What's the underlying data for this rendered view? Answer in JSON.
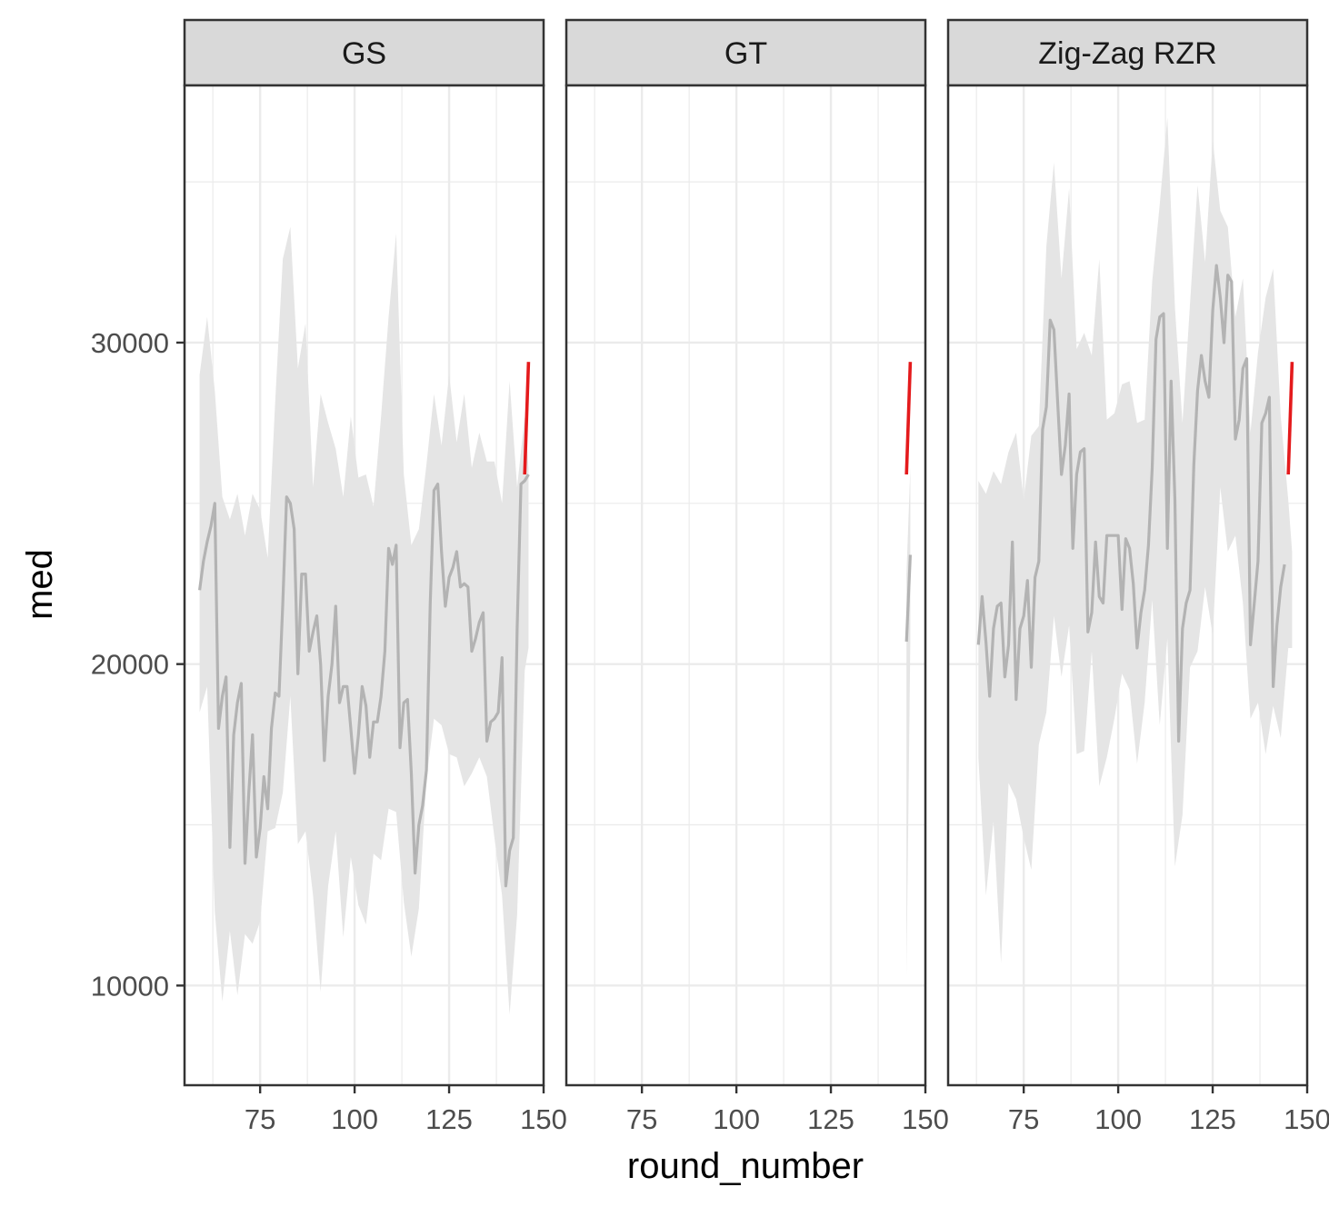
{
  "chart_data": {
    "type": "line",
    "facet_by": "panel",
    "panels": [
      "GS",
      "GT",
      "Zig-Zag RZR"
    ],
    "xlabel": "round_number",
    "ylabel": "med",
    "xlim": [
      55,
      150
    ],
    "ylim": [
      6900,
      38000
    ],
    "xticks": [
      75,
      100,
      125,
      150
    ],
    "xtick_labels": [
      "75",
      "100",
      "125",
      "150"
    ],
    "yticks": [
      10000,
      20000,
      30000
    ],
    "ytick_labels": [
      "10000",
      "20000",
      "30000"
    ],
    "grid": true,
    "theme": "bw",
    "colors": {
      "history_line": "#b3b3b3",
      "band_fill": "#e5e5e5",
      "recent_line": "#e41a1c",
      "strip_fill": "#d9d9d9",
      "grid": "#ebebeb",
      "panel_border": "#333333"
    },
    "series": [
      {
        "panel": "GS",
        "role": "median",
        "x": [
          59,
          60,
          61,
          62,
          63,
          64,
          65,
          66,
          67,
          68,
          69,
          70,
          71,
          72,
          73,
          74,
          75,
          76,
          77,
          78,
          79,
          80,
          81,
          82,
          83,
          84,
          85,
          86,
          87,
          88,
          89,
          90,
          91,
          92,
          93,
          94,
          95,
          96,
          97,
          98,
          99,
          100,
          101,
          102,
          103,
          104,
          105,
          106,
          107,
          108,
          109,
          110,
          111,
          112,
          113,
          114,
          115,
          116,
          117,
          118,
          119,
          120,
          121,
          122,
          123,
          124,
          125,
          126,
          127,
          128,
          129,
          130,
          131,
          132,
          133,
          134,
          135,
          136,
          137,
          138,
          139,
          140,
          141,
          142,
          143,
          144,
          145,
          146
        ],
        "y": [
          22300,
          23200,
          23800,
          24300,
          25000,
          18000,
          19000,
          19600,
          14300,
          17800,
          18800,
          19400,
          13800,
          16000,
          17800,
          14000,
          14900,
          16500,
          15500,
          18000,
          19100,
          19000,
          21900,
          25200,
          25000,
          24200,
          19700,
          22800,
          22800,
          20400,
          21000,
          21500,
          20000,
          17000,
          19000,
          20000,
          21800,
          18800,
          19300,
          19300,
          18000,
          16600,
          17800,
          19300,
          18700,
          17100,
          18200,
          18200,
          19000,
          20400,
          23600,
          23100,
          23700,
          17400,
          18800,
          18900,
          16600,
          13500,
          15000,
          15600,
          16700,
          21900,
          25400,
          25600,
          23500,
          21800,
          22700,
          23000,
          23500,
          22400,
          22500,
          22400,
          20400,
          20800,
          21300,
          21600,
          17600,
          18200,
          18300,
          18500,
          20200,
          13100,
          14200,
          14600,
          21100,
          25600,
          25700,
          25900
        ]
      },
      {
        "panel": "GS",
        "role": "band_upper",
        "x": [
          59,
          61,
          63,
          65,
          67,
          69,
          71,
          73,
          75,
          77,
          79,
          81,
          83,
          85,
          87,
          89,
          91,
          93,
          95,
          97,
          99,
          101,
          103,
          105,
          107,
          109,
          111,
          113,
          115,
          117,
          119,
          121,
          123,
          125,
          127,
          129,
          131,
          133,
          135,
          137,
          139,
          141,
          143,
          145,
          146
        ],
        "y": [
          29000,
          30800,
          28500,
          25200,
          24500,
          25300,
          24000,
          25300,
          24800,
          23300,
          28200,
          32600,
          33600,
          29200,
          30600,
          25500,
          28400,
          27500,
          26700,
          25200,
          27700,
          25800,
          25900,
          24900,
          27700,
          30800,
          33400,
          25900,
          23700,
          24200,
          26200,
          28400,
          26800,
          29000,
          26900,
          28400,
          26100,
          27200,
          26300,
          26300,
          25000,
          28800,
          25500,
          27700,
          26100
        ]
      },
      {
        "panel": "GS",
        "role": "band_lower",
        "x": [
          59,
          61,
          63,
          65,
          67,
          69,
          71,
          73,
          75,
          77,
          79,
          81,
          83,
          85,
          87,
          89,
          91,
          93,
          95,
          97,
          99,
          101,
          103,
          105,
          107,
          109,
          111,
          113,
          115,
          117,
          119,
          121,
          123,
          125,
          127,
          129,
          131,
          133,
          135,
          137,
          139,
          141,
          143,
          145,
          146
        ],
        "y": [
          18500,
          19300,
          12300,
          9500,
          11700,
          9700,
          11600,
          11300,
          12000,
          14800,
          14900,
          16000,
          19000,
          14400,
          14800,
          12800,
          9800,
          13100,
          14800,
          11500,
          14000,
          12500,
          11900,
          14100,
          13900,
          15500,
          15400,
          12600,
          10900,
          12400,
          16400,
          18300,
          18100,
          17200,
          17100,
          16200,
          16600,
          17100,
          16500,
          14600,
          12800,
          9100,
          12200,
          19800,
          20500
        ]
      },
      {
        "panel": "GS",
        "role": "recent",
        "x": [
          145,
          146
        ],
        "y": [
          25900,
          29400
        ]
      },
      {
        "panel": "GT",
        "role": "median",
        "x": [
          145,
          146
        ],
        "y": [
          20700,
          23400
        ]
      },
      {
        "panel": "GT",
        "role": "band_upper",
        "x": [
          145,
          146
        ],
        "y": [
          22800,
          26100
        ]
      },
      {
        "panel": "GT",
        "role": "band_lower",
        "x": [
          145,
          146
        ],
        "y": [
          10300,
          20700
        ]
      },
      {
        "panel": "GT",
        "role": "recent",
        "x": [
          145,
          146
        ],
        "y": [
          25900,
          29400
        ]
      },
      {
        "panel": "Zig-Zag RZR",
        "role": "median",
        "x": [
          63,
          64,
          65,
          66,
          67,
          68,
          69,
          70,
          71,
          72,
          73,
          74,
          75,
          76,
          77,
          78,
          79,
          80,
          81,
          82,
          83,
          84,
          85,
          86,
          87,
          88,
          89,
          90,
          91,
          92,
          93,
          94,
          95,
          96,
          97,
          98,
          99,
          100,
          101,
          102,
          103,
          104,
          105,
          106,
          107,
          108,
          109,
          110,
          111,
          112,
          113,
          114,
          115,
          116,
          117,
          118,
          119,
          120,
          121,
          122,
          123,
          124,
          125,
          126,
          127,
          128,
          129,
          130,
          131,
          132,
          133,
          134,
          135,
          136,
          137,
          138,
          139,
          140,
          141,
          142,
          143,
          144
        ],
        "y": [
          20600,
          22100,
          20700,
          19000,
          21100,
          21800,
          21900,
          19600,
          20600,
          23800,
          18900,
          21100,
          21500,
          22600,
          19900,
          22700,
          23200,
          27300,
          28000,
          30700,
          30400,
          28100,
          25900,
          26800,
          28400,
          23600,
          25900,
          26600,
          26700,
          21000,
          21600,
          23800,
          22100,
          21900,
          24000,
          24000,
          24000,
          24000,
          21700,
          23900,
          23600,
          22500,
          20500,
          21600,
          22300,
          23700,
          26100,
          30100,
          30800,
          30900,
          23600,
          28800,
          25100,
          17600,
          21100,
          21900,
          22300,
          26200,
          28500,
          29600,
          28800,
          28300,
          31000,
          32400,
          31400,
          30000,
          32100,
          31900,
          27000,
          27600,
          29200,
          29500,
          20600,
          21900,
          23200,
          27500,
          27800,
          28300,
          19300,
          21200,
          22400,
          23100
        ]
      },
      {
        "panel": "Zig-Zag RZR",
        "role": "band_upper",
        "x": [
          63,
          65,
          67,
          69,
          71,
          73,
          75,
          77,
          79,
          81,
          83,
          85,
          87,
          89,
          91,
          93,
          95,
          97,
          99,
          101,
          103,
          105,
          107,
          109,
          111,
          113,
          115,
          117,
          119,
          121,
          123,
          125,
          127,
          129,
          131,
          133,
          135,
          137,
          139,
          141,
          143,
          145,
          146
        ],
        "y": [
          25700,
          25300,
          26000,
          25600,
          26600,
          27200,
          25100,
          27100,
          27400,
          33000,
          35600,
          32000,
          34800,
          29800,
          30300,
          29600,
          32600,
          27600,
          27800,
          28700,
          28800,
          27500,
          27600,
          31900,
          34300,
          37000,
          31100,
          27500,
          31200,
          34900,
          32500,
          36300,
          34100,
          33600,
          30800,
          32000,
          27200,
          29700,
          31400,
          32300,
          27700,
          25100,
          23500
        ]
      },
      {
        "panel": "Zig-Zag RZR",
        "role": "band_lower",
        "x": [
          63,
          65,
          67,
          69,
          71,
          73,
          75,
          77,
          79,
          81,
          83,
          85,
          87,
          89,
          91,
          93,
          95,
          97,
          99,
          101,
          103,
          105,
          107,
          109,
          111,
          113,
          115,
          117,
          119,
          121,
          123,
          125,
          127,
          129,
          131,
          133,
          135,
          137,
          139,
          141,
          143,
          145,
          146
        ],
        "y": [
          17100,
          12800,
          15100,
          10700,
          16300,
          15800,
          14600,
          13600,
          17500,
          18500,
          21500,
          19600,
          21200,
          17200,
          17300,
          20400,
          16200,
          17100,
          18300,
          19700,
          19200,
          16900,
          18800,
          22000,
          18100,
          20800,
          13700,
          15300,
          19900,
          20400,
          22400,
          20900,
          25500,
          23500,
          24000,
          21900,
          18300,
          18800,
          17200,
          18700,
          17700,
          20500,
          20500
        ]
      },
      {
        "panel": "Zig-Zag RZR",
        "role": "recent",
        "x": [
          145,
          146
        ],
        "y": [
          25900,
          29400
        ]
      }
    ]
  }
}
